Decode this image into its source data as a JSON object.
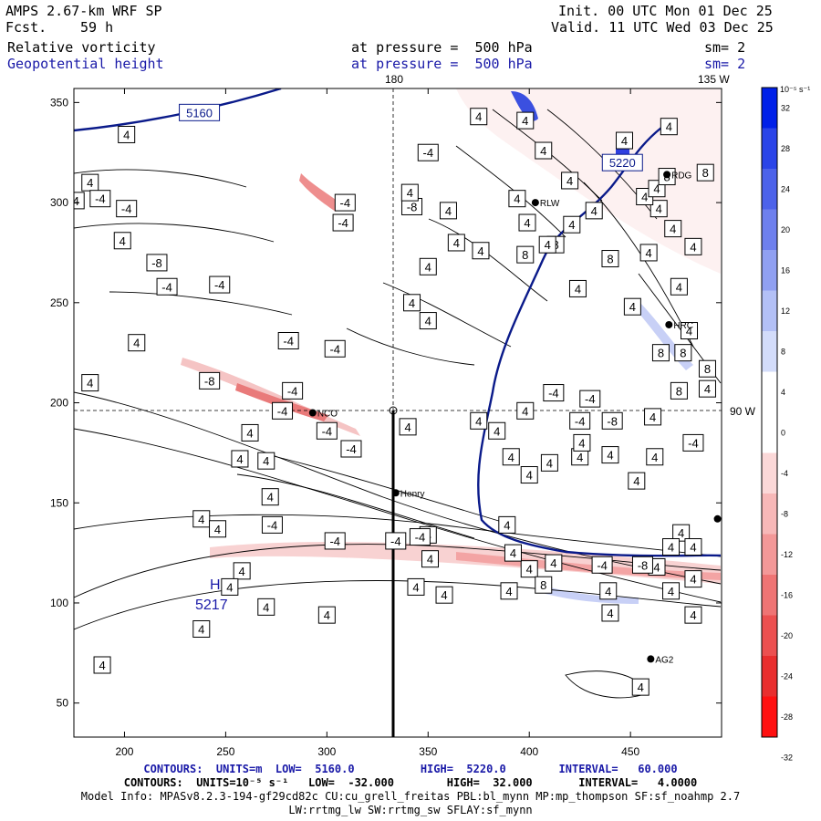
{
  "header": {
    "model": "AMPS 2.67-km WRF SP",
    "fcst_label": "Fcst.",
    "fcst_value": "59 h",
    "init": "Init. 00 UTC Mon 01 Dec 25",
    "valid": "Valid. 11 UTC Wed 03 Dec 25",
    "field1": "Relative vorticity",
    "field1_level": "at pressure =  500 hPa",
    "field1_sm": "sm= 2",
    "field2": "Geopotential height",
    "field2_level": "at pressure =  500 hPa",
    "field2_sm": "sm= 2"
  },
  "map": {
    "top_labels": [
      "180",
      "135 W"
    ],
    "right_label": "90 W",
    "x_ticks": [
      200,
      250,
      300,
      350,
      400,
      450
    ],
    "y_ticks": [
      50,
      100,
      150,
      200,
      250,
      300,
      350
    ],
    "xlim": [
      175,
      495
    ],
    "ylim": [
      33,
      357
    ],
    "stations": [
      {
        "name": "NCO",
        "x": 293,
        "y": 195
      },
      {
        "name": "Henry",
        "x": 334,
        "y": 155
      },
      {
        "name": "RLW",
        "x": 403,
        "y": 300
      },
      {
        "name": "RDG",
        "x": 468,
        "y": 314
      },
      {
        "name": "HRC",
        "x": 469,
        "y": 239
      },
      {
        "name": "AG2",
        "x": 460,
        "y": 72
      },
      {
        "name": "",
        "x": 493,
        "y": 142
      }
    ],
    "high_label": "H",
    "high_value": "5217",
    "height_labels": [
      {
        "text": "5160",
        "x": 237,
        "y": 345
      },
      {
        "text": "5220",
        "x": 446,
        "y": 320
      }
    ],
    "vort_labels": [
      {
        "t": "4",
        "x": 201,
        "y": 334
      },
      {
        "t": "4",
        "x": 183,
        "y": 310
      },
      {
        "t": "-4",
        "x": 188,
        "y": 302
      },
      {
        "t": "-4",
        "x": 201,
        "y": 297
      },
      {
        "t": "4",
        "x": 199,
        "y": 281
      },
      {
        "t": "4",
        "x": 176,
        "y": 301
      },
      {
        "t": "-8",
        "x": 216,
        "y": 270
      },
      {
        "t": "4",
        "x": 206,
        "y": 230
      },
      {
        "t": "-4",
        "x": 221,
        "y": 258
      },
      {
        "t": "-4",
        "x": 247,
        "y": 259
      },
      {
        "t": "-4",
        "x": 308,
        "y": 290
      },
      {
        "t": "-4",
        "x": 309,
        "y": 300
      },
      {
        "t": "-8",
        "x": 342,
        "y": 298
      },
      {
        "t": "-4",
        "x": 350,
        "y": 325
      },
      {
        "t": "4",
        "x": 341,
        "y": 305
      },
      {
        "t": "4",
        "x": 360,
        "y": 296
      },
      {
        "t": "4",
        "x": 364,
        "y": 280
      },
      {
        "t": "4",
        "x": 350,
        "y": 268
      },
      {
        "t": "4",
        "x": 342,
        "y": 250
      },
      {
        "t": "4",
        "x": 350,
        "y": 241
      },
      {
        "t": "-4",
        "x": 304,
        "y": 227
      },
      {
        "t": "-4",
        "x": 281,
        "y": 231
      },
      {
        "t": "-4",
        "x": 283,
        "y": 206
      },
      {
        "t": "4",
        "x": 183,
        "y": 210
      },
      {
        "t": "-8",
        "x": 242,
        "y": 211
      },
      {
        "t": "-4",
        "x": 278,
        "y": 196
      },
      {
        "t": "-4",
        "x": 300,
        "y": 186
      },
      {
        "t": "4",
        "x": 262,
        "y": 185
      },
      {
        "t": "4",
        "x": 257,
        "y": 172
      },
      {
        "t": "4",
        "x": 270,
        "y": 171
      },
      {
        "t": "-4",
        "x": 312,
        "y": 177
      },
      {
        "t": "4",
        "x": 340,
        "y": 188
      },
      {
        "t": "4",
        "x": 375,
        "y": 191
      },
      {
        "t": "4",
        "x": 384,
        "y": 186
      },
      {
        "t": "4",
        "x": 391,
        "y": 173
      },
      {
        "t": "4",
        "x": 400,
        "y": 164
      },
      {
        "t": "4",
        "x": 410,
        "y": 170
      },
      {
        "t": "4",
        "x": 425,
        "y": 173
      },
      {
        "t": "4",
        "x": 440,
        "y": 174
      },
      {
        "t": "-4",
        "x": 425,
        "y": 191
      },
      {
        "t": "-8",
        "x": 441,
        "y": 191
      },
      {
        "t": "4",
        "x": 461,
        "y": 193
      },
      {
        "t": "-4",
        "x": 481,
        "y": 180
      },
      {
        "t": "4",
        "x": 453,
        "y": 161
      },
      {
        "t": "4",
        "x": 462,
        "y": 173
      },
      {
        "t": "4",
        "x": 475,
        "y": 135
      },
      {
        "t": "4",
        "x": 463,
        "y": 118
      },
      {
        "t": "-4",
        "x": 436,
        "y": 119
      },
      {
        "t": "-8",
        "x": 456,
        "y": 119
      },
      {
        "t": "4",
        "x": 470,
        "y": 128
      },
      {
        "t": "4",
        "x": 412,
        "y": 120
      },
      {
        "t": "4",
        "x": 400,
        "y": 117
      },
      {
        "t": "8",
        "x": 407,
        "y": 109
      },
      {
        "t": "4",
        "x": 392,
        "y": 125
      },
      {
        "t": "4",
        "x": 389,
        "y": 139
      },
      {
        "t": "4",
        "x": 350,
        "y": 134
      },
      {
        "t": "-4",
        "x": 346,
        "y": 133
      },
      {
        "t": "-4",
        "x": 334,
        "y": 131
      },
      {
        "t": "-4",
        "x": 304,
        "y": 131
      },
      {
        "t": "-4",
        "x": 273,
        "y": 139
      },
      {
        "t": "4",
        "x": 238,
        "y": 142
      },
      {
        "t": "4",
        "x": 351,
        "y": 122
      },
      {
        "t": "4",
        "x": 344,
        "y": 108
      },
      {
        "t": "4",
        "x": 358,
        "y": 104
      },
      {
        "t": "4",
        "x": 390,
        "y": 106
      },
      {
        "t": "4",
        "x": 439,
        "y": 106
      },
      {
        "t": "4",
        "x": 481,
        "y": 94
      },
      {
        "t": "4",
        "x": 470,
        "y": 106
      },
      {
        "t": "4",
        "x": 440,
        "y": 95
      },
      {
        "t": "4",
        "x": 300,
        "y": 94
      },
      {
        "t": "4",
        "x": 270,
        "y": 98
      },
      {
        "t": "4",
        "x": 238,
        "y": 87
      },
      {
        "t": "4",
        "x": 189,
        "y": 69
      },
      {
        "t": "4",
        "x": 455,
        "y": 58
      },
      {
        "t": "4",
        "x": 481,
        "y": 112
      },
      {
        "t": "4",
        "x": 258,
        "y": 116
      },
      {
        "t": "4",
        "x": 252,
        "y": 108
      },
      {
        "t": "4",
        "x": 246,
        "y": 137
      },
      {
        "t": "4",
        "x": 272,
        "y": 153
      },
      {
        "t": "8",
        "x": 413,
        "y": 279
      },
      {
        "t": "4",
        "x": 420,
        "y": 311
      },
      {
        "t": "4",
        "x": 447,
        "y": 331
      },
      {
        "t": "8",
        "x": 440,
        "y": 272
      },
      {
        "t": "4",
        "x": 424,
        "y": 257
      },
      {
        "t": "4",
        "x": 409,
        "y": 279
      },
      {
        "t": "4",
        "x": 399,
        "y": 290
      },
      {
        "t": "8",
        "x": 398,
        "y": 274
      },
      {
        "t": "4",
        "x": 394,
        "y": 302
      },
      {
        "t": "4",
        "x": 421,
        "y": 289
      },
      {
        "t": "4",
        "x": 432,
        "y": 296
      },
      {
        "t": "8",
        "x": 465,
        "y": 225
      },
      {
        "t": "8",
        "x": 476,
        "y": 225
      },
      {
        "t": "4",
        "x": 479,
        "y": 236
      },
      {
        "t": "8",
        "x": 488,
        "y": 217
      },
      {
        "t": "8",
        "x": 474,
        "y": 206
      },
      {
        "t": "4",
        "x": 488,
        "y": 207
      },
      {
        "t": "4",
        "x": 474,
        "y": 258
      },
      {
        "t": "4",
        "x": 451,
        "y": 248
      },
      {
        "t": "4",
        "x": 459,
        "y": 275
      },
      {
        "t": "4",
        "x": 471,
        "y": 287
      },
      {
        "t": "4",
        "x": 481,
        "y": 278
      },
      {
        "t": "4",
        "x": 464,
        "y": 297
      },
      {
        "t": "4",
        "x": 457,
        "y": 303
      },
      {
        "t": "8",
        "x": 487,
        "y": 315
      },
      {
        "t": "4",
        "x": 463,
        "y": 307
      },
      {
        "t": "4",
        "x": 469,
        "y": 338
      },
      {
        "t": "4",
        "x": 398,
        "y": 341
      },
      {
        "t": "4",
        "x": 375,
        "y": 343
      },
      {
        "t": "4",
        "x": 376,
        "y": 276
      },
      {
        "t": "-4",
        "x": 412,
        "y": 205
      },
      {
        "t": "4",
        "x": 398,
        "y": 196
      },
      {
        "t": "-4",
        "x": 430,
        "y": 202
      },
      {
        "t": "4",
        "x": 481,
        "y": 128
      },
      {
        "t": "4",
        "x": 426,
        "y": 180
      },
      {
        "t": "8",
        "x": 468,
        "y": 313
      },
      {
        "t": "4",
        "x": 407,
        "y": 326
      }
    ]
  },
  "colorbar": {
    "unit_label": "10⁻⁵ s⁻¹",
    "ticks": [
      "32",
      "28",
      "24",
      "20",
      "16",
      "12",
      "8",
      "4",
      "0",
      "-4",
      "-8",
      "-12",
      "-16",
      "-20",
      "-24",
      "-28",
      "-32"
    ],
    "colors": [
      "#0020e8",
      "#2a44e8",
      "#4c62ea",
      "#6e80ee",
      "#90a0f2",
      "#b3c0f6",
      "#d3dcfa",
      "#ffffff",
      "#ffffff",
      "#fbd8d8",
      "#f7b8b8",
      "#f39898",
      "#ef7474",
      "#ec5050",
      "#e92e2e",
      "#ff1010"
    ]
  },
  "footer": {
    "line1": "CONTOURS:  UNITS=m  LOW=  5160.0          HIGH=  5220.0        INTERVAL=   60.000",
    "line2": "CONTOURS:  UNITS=10⁻⁵ s⁻¹   LOW=  -32.000        HIGH=  32.000       INTERVAL=   4.0000",
    "line3": "Model Info: MPASv8.2.3-194-gf29cd82c CU:cu_grell_freitas PBL:bl_mynn MP:mp_thompson SF:sf_noahmp 2.7",
    "line4": "LW:rrtmg_lw SW:rrtmg_sw SFLAY:sf_mynn"
  }
}
